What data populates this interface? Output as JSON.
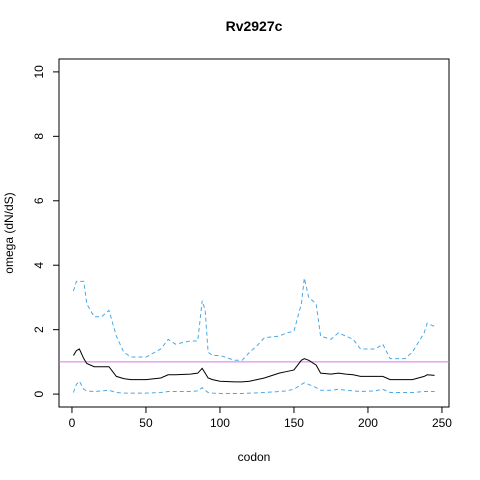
{
  "chart_data": {
    "type": "line",
    "title": "Rv2927c",
    "x_label": "codon",
    "y_label": "omega (dN/dS)",
    "x": [
      1,
      3,
      5,
      8,
      10,
      15,
      20,
      25,
      30,
      35,
      40,
      50,
      60,
      65,
      70,
      80,
      85,
      88,
      90,
      92,
      95,
      100,
      110,
      115,
      120,
      125,
      130,
      140,
      145,
      150,
      155,
      157,
      160,
      165,
      168,
      175,
      180,
      185,
      190,
      195,
      205,
      210,
      215,
      225,
      230,
      238,
      240,
      245
    ],
    "series": [
      {
        "color": "#4aa8e8",
        "dash": true,
        "values": [
          3.2,
          3.5,
          3.5,
          3.5,
          2.8,
          2.4,
          2.4,
          2.6,
          1.8,
          1.3,
          1.15,
          1.15,
          1.4,
          1.7,
          1.55,
          1.65,
          1.65,
          2.9,
          2.6,
          1.3,
          1.2,
          1.2,
          1.05,
          1.05,
          1.3,
          1.5,
          1.75,
          1.8,
          1.9,
          1.95,
          2.8,
          3.6,
          3.0,
          2.8,
          1.8,
          1.7,
          1.9,
          1.8,
          1.7,
          1.4,
          1.4,
          1.55,
          1.1,
          1.1,
          1.3,
          1.9,
          2.2,
          2.1
        ]
      },
      {
        "color": "#000000",
        "dash": false,
        "values": [
          1.2,
          1.35,
          1.4,
          1.1,
          0.95,
          0.85,
          0.85,
          0.85,
          0.55,
          0.48,
          0.45,
          0.45,
          0.5,
          0.6,
          0.6,
          0.62,
          0.65,
          0.8,
          0.65,
          0.5,
          0.45,
          0.4,
          0.38,
          0.38,
          0.4,
          0.45,
          0.5,
          0.65,
          0.7,
          0.75,
          1.05,
          1.1,
          1.05,
          0.9,
          0.65,
          0.62,
          0.65,
          0.62,
          0.6,
          0.55,
          0.55,
          0.55,
          0.45,
          0.45,
          0.45,
          0.55,
          0.6,
          0.58
        ]
      },
      {
        "color": "#4aa8e8",
        "dash": true,
        "values": [
          0.05,
          0.3,
          0.4,
          0.15,
          0.1,
          0.08,
          0.1,
          0.12,
          0.05,
          0.03,
          0.03,
          0.03,
          0.05,
          0.08,
          0.08,
          0.08,
          0.1,
          0.2,
          0.12,
          0.05,
          0.03,
          0.02,
          0.02,
          0.02,
          0.03,
          0.04,
          0.05,
          0.08,
          0.1,
          0.15,
          0.3,
          0.35,
          0.3,
          0.2,
          0.12,
          0.12,
          0.15,
          0.12,
          0.1,
          0.08,
          0.1,
          0.15,
          0.05,
          0.05,
          0.05,
          0.08,
          0.08,
          0.08
        ]
      }
    ],
    "hline": 1,
    "hline_color": "#df73df",
    "xlim": [
      -8.76,
      254.76
    ],
    "ylim": [
      -0.4,
      10.4
    ],
    "xticks": [
      0,
      50,
      100,
      150,
      200,
      250
    ],
    "yticks": [
      0,
      2,
      4,
      6,
      8,
      10
    ]
  }
}
